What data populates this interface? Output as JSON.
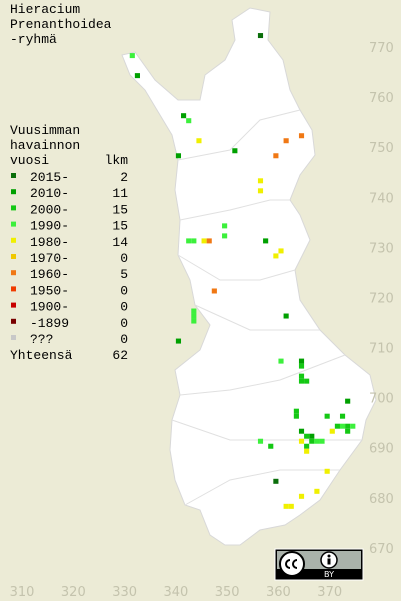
{
  "title": [
    "Hieracium",
    "Prenanthoidea",
    "-ryhmä"
  ],
  "map": {
    "xlim": [
      305.7,
      383.9
    ],
    "ylim": [
      659.6,
      779.6
    ],
    "xticks": [
      310,
      320,
      330,
      340,
      350,
      360,
      370
    ],
    "yticks": [
      670,
      680,
      690,
      700,
      710,
      720,
      730,
      740,
      750,
      760,
      770
    ]
  },
  "legend": {
    "header": [
      "Vuusimman",
      "havainnon",
      "vuosi"
    ],
    "count_header": "lkm",
    "entries": [
      {
        "label": "2015-",
        "count": 2,
        "color": "#0a6e0a",
        "points": [
          [
            356,
            772
          ],
          [
            359,
            683
          ]
        ]
      },
      {
        "label": "2010-",
        "count": 11,
        "color": "#00a000",
        "points": [
          [
            332,
            764
          ],
          [
            341,
            756
          ],
          [
            351,
            749
          ],
          [
            340,
            748
          ],
          [
            357,
            731
          ],
          [
            361,
            716
          ],
          [
            340,
            711
          ],
          [
            364,
            707
          ],
          [
            373,
            699
          ],
          [
            364,
            693
          ],
          [
            366,
            692
          ]
        ]
      },
      {
        "label": "2000-",
        "count": 15,
        "color": "#14c814",
        "points": [
          [
            364,
            706
          ],
          [
            364,
            703
          ],
          [
            365,
            703
          ],
          [
            363,
            696
          ],
          [
            369,
            696
          ],
          [
            372,
            696
          ],
          [
            365,
            692
          ],
          [
            373,
            694
          ],
          [
            373,
            693
          ],
          [
            358,
            690
          ],
          [
            366,
            691
          ],
          [
            371,
            694
          ],
          [
            365,
            690
          ],
          [
            364,
            704
          ],
          [
            363,
            697
          ]
        ]
      },
      {
        "label": "1990-",
        "count": 15,
        "color": "#3cf03c",
        "points": [
          [
            331,
            768
          ],
          [
            342,
            755
          ],
          [
            349,
            734
          ],
          [
            349,
            732
          ],
          [
            342,
            731
          ],
          [
            343,
            731
          ],
          [
            343,
            717
          ],
          [
            343,
            716
          ],
          [
            343,
            715
          ],
          [
            360,
            707
          ],
          [
            367,
            691
          ],
          [
            372,
            694
          ],
          [
            356,
            691
          ],
          [
            368,
            691
          ],
          [
            374,
            694
          ]
        ]
      },
      {
        "label": "1980-",
        "count": 14,
        "color": "#f0f000",
        "points": [
          [
            344,
            751
          ],
          [
            356,
            743
          ],
          [
            356,
            741
          ],
          [
            345,
            731
          ],
          [
            360,
            729
          ],
          [
            359,
            728
          ],
          [
            370,
            693
          ],
          [
            364,
            691
          ],
          [
            365,
            689
          ],
          [
            369,
            685
          ],
          [
            367,
            681
          ],
          [
            364,
            680
          ],
          [
            362,
            678
          ],
          [
            361,
            678
          ]
        ]
      },
      {
        "label": "1970-",
        "count": 0,
        "color": "#f0c800",
        "points": []
      },
      {
        "label": "1960-",
        "count": 5,
        "color": "#f07814",
        "points": [
          [
            364,
            752
          ],
          [
            361,
            751
          ],
          [
            359,
            748
          ],
          [
            346,
            731
          ],
          [
            347,
            721
          ]
        ]
      },
      {
        "label": "1950-",
        "count": 0,
        "color": "#f03c00",
        "points": []
      },
      {
        "label": "1900-",
        "count": 0,
        "color": "#c80000",
        "points": []
      },
      {
        "label": "-1899",
        "count": 0,
        "color": "#780000",
        "points": []
      },
      {
        "label": "???",
        "count": 0,
        "color": "#c8c8c8",
        "points": []
      }
    ],
    "total_label": "Yhteensä",
    "total": 62
  },
  "license_badge": {
    "by": "BY"
  }
}
